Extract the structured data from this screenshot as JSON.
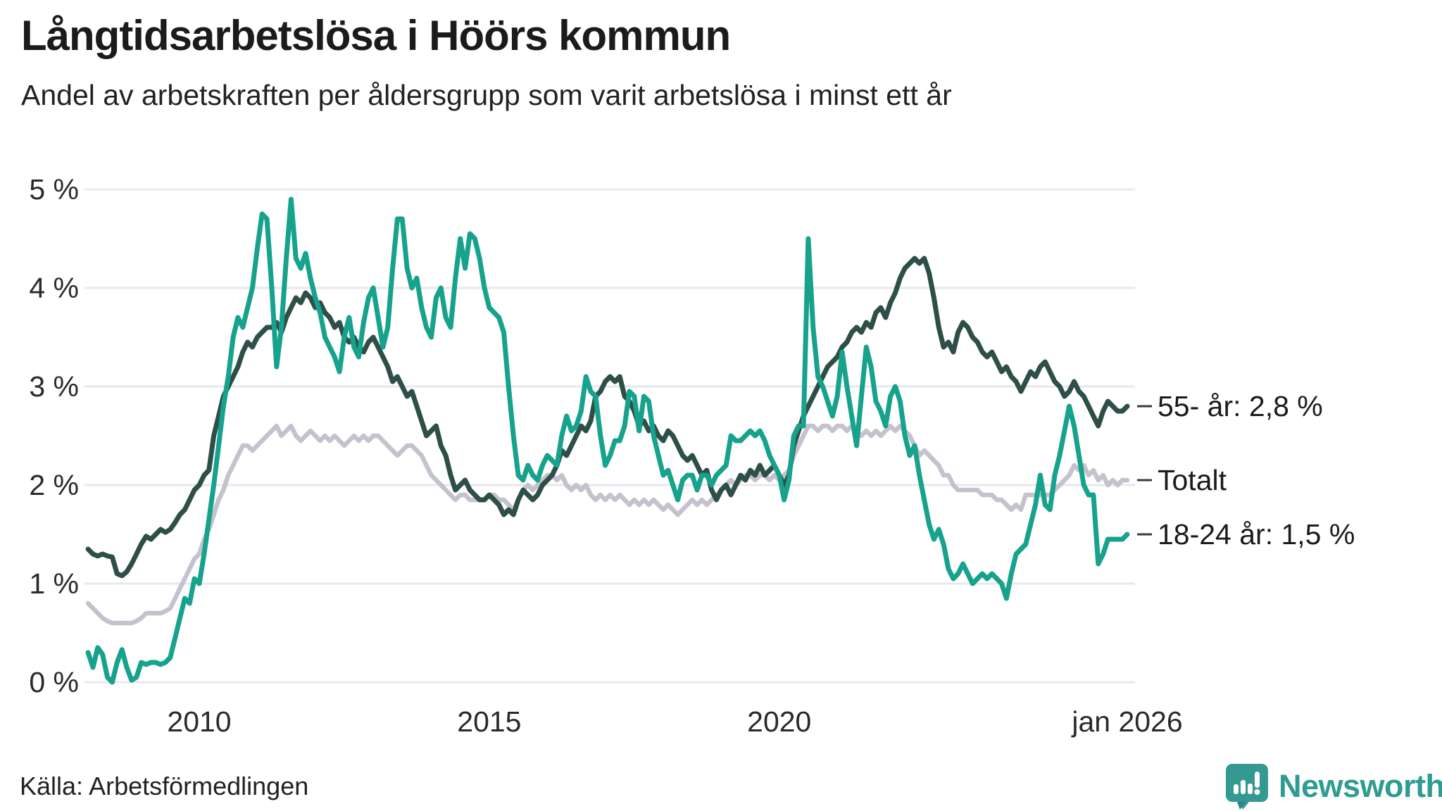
{
  "title": "Långtidsarbetslösa i Höörs kommun",
  "subtitle": "Andel av arbetskraften per åldersgrupp som varit arbetslösa i minst ett år",
  "source": "Källa: Arbetsförmedlingen",
  "logo_text": "Newsworthy",
  "colors": {
    "grid": "#e8e7ec",
    "tick_dash": "#3a3a3a",
    "logo_teal": "#339992",
    "logo_text_teal": "#2e9c90"
  },
  "chart_data": {
    "type": "line",
    "title": "Långtidsarbetslösa i Höörs kommun",
    "subtitle": "Andel av arbetskraften per åldersgrupp som varit arbetslösa i minst ett år",
    "unit": "% av arbetskraften",
    "x_start": "2008-02",
    "x_end": "2026-01",
    "x_step": "month",
    "ylim": [
      0,
      5
    ],
    "grid": true,
    "y_tick_labels": [
      "0 %",
      "1 %",
      "2 %",
      "3 %",
      "4 %",
      "5 %"
    ],
    "y_tick_values": [
      0,
      1,
      2,
      3,
      4,
      5
    ],
    "x_tick_labels": [
      "2010",
      "2015",
      "2020",
      "jan 2026"
    ],
    "x_tick_values": [
      2010,
      2015,
      2020,
      2026
    ],
    "legend_position": "right-end-of-line",
    "series": [
      {
        "name": "Totalt",
        "label": "Totalt",
        "last_value": 2.05,
        "color": "#c4c2cd",
        "width": 6.5,
        "values": [
          0.8,
          0.75,
          0.7,
          0.65,
          0.62,
          0.6,
          0.6,
          0.6,
          0.6,
          0.6,
          0.62,
          0.65,
          0.7,
          0.7,
          0.7,
          0.7,
          0.72,
          0.75,
          0.85,
          0.95,
          1.05,
          1.15,
          1.25,
          1.3,
          1.45,
          1.55,
          1.7,
          1.85,
          1.95,
          2.1,
          2.2,
          2.3,
          2.4,
          2.4,
          2.35,
          2.4,
          2.45,
          2.5,
          2.55,
          2.6,
          2.5,
          2.55,
          2.6,
          2.5,
          2.45,
          2.5,
          2.55,
          2.5,
          2.45,
          2.5,
          2.45,
          2.5,
          2.45,
          2.4,
          2.45,
          2.5,
          2.45,
          2.5,
          2.45,
          2.5,
          2.5,
          2.45,
          2.4,
          2.35,
          2.3,
          2.35,
          2.4,
          2.4,
          2.35,
          2.3,
          2.2,
          2.1,
          2.05,
          2.0,
          1.95,
          1.9,
          1.85,
          1.9,
          1.9,
          1.85,
          1.85,
          1.85,
          1.85,
          1.9,
          1.9,
          1.85,
          1.85,
          1.8,
          1.75,
          1.85,
          1.95,
          2.0,
          1.95,
          2.0,
          2.05,
          2.1,
          2.1,
          2.05,
          2.1,
          2.0,
          1.95,
          2.0,
          1.95,
          2.0,
          1.9,
          1.85,
          1.9,
          1.85,
          1.9,
          1.85,
          1.9,
          1.85,
          1.8,
          1.85,
          1.8,
          1.85,
          1.8,
          1.85,
          1.8,
          1.75,
          1.8,
          1.75,
          1.7,
          1.75,
          1.8,
          1.85,
          1.8,
          1.85,
          1.8,
          1.85,
          1.9,
          1.95,
          2.0,
          2.05,
          2.0,
          2.05,
          2.1,
          2.1,
          2.05,
          2.1,
          2.1,
          2.05,
          2.1,
          2.05,
          2.1,
          2.15,
          2.3,
          2.4,
          2.5,
          2.6,
          2.6,
          2.55,
          2.6,
          2.6,
          2.55,
          2.6,
          2.6,
          2.55,
          2.6,
          2.55,
          2.5,
          2.55,
          2.5,
          2.55,
          2.5,
          2.55,
          2.6,
          2.55,
          2.6,
          2.55,
          2.5,
          2.4,
          2.3,
          2.35,
          2.3,
          2.25,
          2.2,
          2.1,
          2.1,
          2.0,
          1.95,
          1.95,
          1.95,
          1.95,
          1.95,
          1.9,
          1.9,
          1.9,
          1.85,
          1.85,
          1.8,
          1.75,
          1.8,
          1.75,
          1.9,
          1.9,
          1.9,
          1.9,
          1.9,
          1.9,
          1.95,
          2.0,
          2.05,
          2.1,
          2.2,
          2.15,
          2.2,
          2.1,
          2.15,
          2.05,
          2.1,
          2.0,
          2.05,
          2.0,
          2.05,
          2.05
        ]
      },
      {
        "name": "55- år",
        "label": "55- år: 2,8 %",
        "last_value": 2.8,
        "color": "#2d4f47",
        "width": 7,
        "values": [
          1.35,
          1.3,
          1.28,
          1.3,
          1.28,
          1.27,
          1.1,
          1.08,
          1.12,
          1.2,
          1.3,
          1.4,
          1.48,
          1.45,
          1.5,
          1.55,
          1.52,
          1.55,
          1.62,
          1.7,
          1.75,
          1.85,
          1.95,
          2.0,
          2.1,
          2.15,
          2.5,
          2.7,
          2.9,
          3.0,
          3.1,
          3.2,
          3.35,
          3.45,
          3.4,
          3.5,
          3.55,
          3.6,
          3.6,
          3.65,
          3.55,
          3.7,
          3.8,
          3.9,
          3.85,
          3.95,
          3.9,
          3.8,
          3.85,
          3.75,
          3.7,
          3.6,
          3.65,
          3.5,
          3.45,
          3.5,
          3.4,
          3.35,
          3.45,
          3.5,
          3.4,
          3.3,
          3.2,
          3.05,
          3.1,
          3.0,
          2.9,
          2.95,
          2.8,
          2.65,
          2.5,
          2.55,
          2.6,
          2.4,
          2.3,
          2.1,
          1.95,
          2.0,
          2.05,
          1.95,
          1.9,
          1.85,
          1.85,
          1.9,
          1.85,
          1.8,
          1.7,
          1.75,
          1.7,
          1.85,
          1.95,
          1.9,
          1.85,
          1.9,
          2.0,
          2.05,
          2.1,
          2.2,
          2.35,
          2.3,
          2.4,
          2.5,
          2.6,
          2.55,
          2.65,
          2.9,
          2.95,
          3.05,
          3.1,
          3.05,
          3.1,
          2.9,
          2.85,
          2.75,
          2.6,
          2.65,
          2.55,
          2.6,
          2.5,
          2.45,
          2.55,
          2.5,
          2.4,
          2.3,
          2.25,
          2.3,
          2.2,
          2.1,
          2.15,
          1.95,
          1.85,
          1.95,
          2.0,
          1.9,
          2.0,
          2.1,
          2.05,
          2.15,
          2.1,
          2.2,
          2.1,
          2.15,
          2.2,
          2.1,
          2.0,
          2.1,
          2.4,
          2.55,
          2.7,
          2.8,
          2.9,
          3.0,
          3.1,
          3.2,
          3.25,
          3.3,
          3.4,
          3.45,
          3.55,
          3.6,
          3.55,
          3.65,
          3.6,
          3.75,
          3.8,
          3.7,
          3.85,
          3.95,
          4.1,
          4.2,
          4.25,
          4.3,
          4.25,
          4.3,
          4.15,
          3.9,
          3.6,
          3.4,
          3.45,
          3.35,
          3.55,
          3.65,
          3.6,
          3.5,
          3.45,
          3.35,
          3.3,
          3.35,
          3.25,
          3.15,
          3.2,
          3.1,
          3.05,
          2.95,
          3.05,
          3.15,
          3.1,
          3.2,
          3.25,
          3.15,
          3.05,
          3.0,
          2.9,
          2.95,
          3.05,
          2.95,
          2.9,
          2.8,
          2.7,
          2.6,
          2.75,
          2.85,
          2.8,
          2.75,
          2.75,
          2.8
        ]
      },
      {
        "name": "18-24 år",
        "label": "18-24 år: 1,5 %",
        "last_value": 1.5,
        "color": "#16a28c",
        "width": 7,
        "values": [
          0.3,
          0.15,
          0.35,
          0.28,
          0.05,
          0.0,
          0.2,
          0.33,
          0.15,
          0.02,
          0.05,
          0.2,
          0.18,
          0.2,
          0.2,
          0.18,
          0.2,
          0.25,
          0.45,
          0.65,
          0.85,
          0.8,
          1.05,
          1.0,
          1.3,
          1.65,
          2.0,
          2.4,
          2.8,
          3.1,
          3.5,
          3.7,
          3.6,
          3.8,
          4.0,
          4.4,
          4.75,
          4.7,
          4.0,
          3.2,
          3.6,
          4.3,
          4.9,
          4.3,
          4.2,
          4.35,
          4.1,
          3.9,
          3.75,
          3.5,
          3.4,
          3.3,
          3.15,
          3.5,
          3.7,
          3.4,
          3.3,
          3.65,
          3.9,
          4.0,
          3.7,
          3.4,
          3.6,
          4.2,
          4.7,
          4.7,
          4.2,
          4.0,
          4.1,
          3.8,
          3.6,
          3.5,
          3.9,
          4.0,
          3.7,
          3.6,
          4.1,
          4.5,
          4.2,
          4.55,
          4.5,
          4.3,
          4.0,
          3.8,
          3.75,
          3.7,
          3.55,
          3.0,
          2.5,
          2.1,
          2.05,
          2.2,
          2.1,
          2.05,
          2.2,
          2.3,
          2.25,
          2.2,
          2.5,
          2.7,
          2.55,
          2.6,
          2.75,
          3.1,
          2.95,
          2.9,
          2.5,
          2.2,
          2.3,
          2.45,
          2.45,
          2.6,
          2.95,
          2.9,
          2.55,
          2.9,
          2.85,
          2.5,
          2.3,
          2.1,
          2.15,
          2.0,
          1.85,
          2.05,
          2.1,
          2.1,
          1.95,
          2.1,
          2.1,
          2.0,
          2.1,
          2.15,
          2.2,
          2.5,
          2.45,
          2.45,
          2.5,
          2.55,
          2.5,
          2.55,
          2.45,
          2.3,
          2.2,
          2.1,
          1.85,
          2.05,
          2.5,
          2.6,
          2.6,
          4.5,
          3.6,
          3.1,
          3.0,
          2.85,
          2.7,
          2.9,
          3.35,
          3.0,
          2.7,
          2.4,
          2.9,
          3.4,
          3.2,
          2.85,
          2.75,
          2.6,
          2.9,
          3.0,
          2.85,
          2.5,
          2.3,
          2.4,
          2.1,
          1.85,
          1.6,
          1.45,
          1.55,
          1.4,
          1.15,
          1.05,
          1.1,
          1.2,
          1.1,
          1.0,
          1.05,
          1.1,
          1.05,
          1.1,
          1.05,
          1.0,
          0.85,
          1.1,
          1.3,
          1.35,
          1.4,
          1.6,
          1.8,
          2.1,
          1.8,
          1.75,
          2.1,
          2.3,
          2.55,
          2.8,
          2.6,
          2.3,
          2.0,
          1.9,
          1.9,
          1.2,
          1.3,
          1.45,
          1.45,
          1.45,
          1.45,
          1.5
        ]
      }
    ]
  }
}
